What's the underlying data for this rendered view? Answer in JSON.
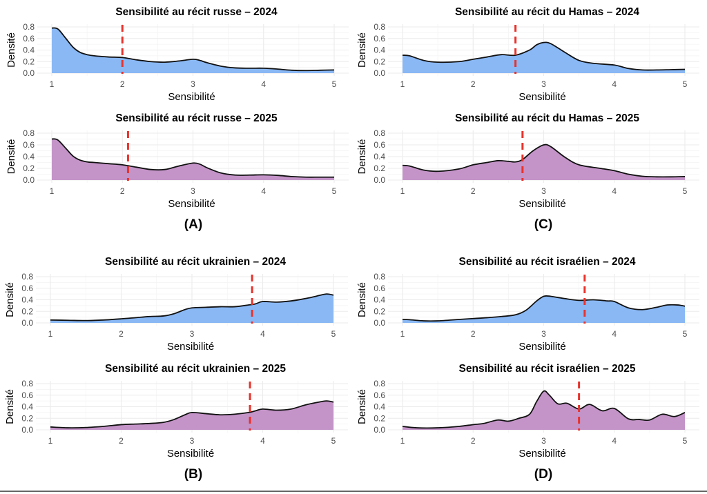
{
  "colors": {
    "fill_2024": "#8ab8f5",
    "fill_2025": "#c494c8",
    "mean_line": "#e8322b",
    "curve": "#111111"
  },
  "panel_labels": [
    "(A)",
    "(B)",
    "(C)",
    "(D)"
  ],
  "chart_data": [
    {
      "id": "russe-2024",
      "panel": "A",
      "year": 2024,
      "type": "area",
      "title": "Sensibilité au récit russe – 2024",
      "xlabel": "Sensibilité",
      "ylabel": "Densité",
      "xlim": [
        1,
        5
      ],
      "ylim": [
        0,
        0.8
      ],
      "xticks": [
        "1",
        "2",
        "3",
        "4",
        "5"
      ],
      "yticks": [
        "0.0",
        "0.2",
        "0.4",
        "0.6",
        "0.8"
      ],
      "grid": true,
      "mean": 2.0,
      "x": [
        1.0,
        1.05,
        1.1,
        1.2,
        1.3,
        1.4,
        1.5,
        1.6,
        1.8,
        2.0,
        2.2,
        2.4,
        2.6,
        2.8,
        3.0,
        3.1,
        3.2,
        3.4,
        3.6,
        3.8,
        4.0,
        4.2,
        4.4,
        4.6,
        4.8,
        5.0
      ],
      "values": [
        0.78,
        0.78,
        0.75,
        0.6,
        0.45,
        0.36,
        0.32,
        0.3,
        0.28,
        0.27,
        0.23,
        0.2,
        0.19,
        0.21,
        0.24,
        0.22,
        0.18,
        0.12,
        0.09,
        0.085,
        0.085,
        0.07,
        0.05,
        0.045,
        0.05,
        0.055
      ]
    },
    {
      "id": "russe-2025",
      "panel": "A",
      "year": 2025,
      "type": "area",
      "title": "Sensibilité au récit russe – 2025",
      "xlabel": "Sensibilité",
      "ylabel": "Densité",
      "xlim": [
        1,
        5
      ],
      "ylim": [
        0,
        0.8
      ],
      "xticks": [
        "1",
        "2",
        "3",
        "4",
        "5"
      ],
      "yticks": [
        "0.0",
        "0.2",
        "0.4",
        "0.6",
        "0.8"
      ],
      "grid": true,
      "mean": 2.08,
      "x": [
        1.0,
        1.05,
        1.1,
        1.2,
        1.3,
        1.4,
        1.5,
        1.6,
        1.8,
        2.0,
        2.2,
        2.4,
        2.6,
        2.8,
        3.0,
        3.1,
        3.2,
        3.4,
        3.6,
        3.8,
        4.0,
        4.2,
        4.4,
        4.6,
        4.8,
        5.0
      ],
      "values": [
        0.7,
        0.7,
        0.67,
        0.54,
        0.41,
        0.34,
        0.31,
        0.3,
        0.28,
        0.26,
        0.22,
        0.18,
        0.18,
        0.24,
        0.29,
        0.27,
        0.21,
        0.12,
        0.085,
        0.085,
        0.09,
        0.08,
        0.06,
        0.05,
        0.05,
        0.05
      ]
    },
    {
      "id": "ukrainien-2024",
      "panel": "B",
      "year": 2024,
      "type": "area",
      "title": "Sensibilité au récit ukrainien – 2024",
      "xlabel": "Sensibilité",
      "ylabel": "Densité",
      "xlim": [
        1,
        5
      ],
      "ylim": [
        0,
        0.8
      ],
      "xticks": [
        "1",
        "2",
        "3",
        "4",
        "5"
      ],
      "yticks": [
        "0.0",
        "0.2",
        "0.4",
        "0.6",
        "0.8"
      ],
      "grid": true,
      "mean": 3.85,
      "x": [
        1.0,
        1.25,
        1.5,
        1.75,
        2.0,
        2.2,
        2.4,
        2.6,
        2.75,
        2.9,
        3.0,
        3.2,
        3.4,
        3.6,
        3.8,
        3.9,
        4.0,
        4.2,
        4.4,
        4.6,
        4.75,
        4.9,
        5.0
      ],
      "values": [
        0.05,
        0.045,
        0.04,
        0.05,
        0.07,
        0.09,
        0.11,
        0.12,
        0.16,
        0.23,
        0.26,
        0.27,
        0.28,
        0.28,
        0.31,
        0.33,
        0.37,
        0.36,
        0.38,
        0.42,
        0.46,
        0.5,
        0.48
      ]
    },
    {
      "id": "ukrainien-2025",
      "panel": "B",
      "year": 2025,
      "type": "area",
      "title": "Sensibilité au récit ukrainien – 2025",
      "xlabel": "Sensibilité",
      "ylabel": "Densité",
      "xlim": [
        1,
        5
      ],
      "ylim": [
        0,
        0.8
      ],
      "xticks": [
        "1",
        "2",
        "3",
        "4",
        "5"
      ],
      "yticks": [
        "0.0",
        "0.2",
        "0.4",
        "0.6",
        "0.8"
      ],
      "grid": true,
      "mean": 3.82,
      "x": [
        1.0,
        1.25,
        1.5,
        1.75,
        2.0,
        2.2,
        2.4,
        2.6,
        2.75,
        2.9,
        3.0,
        3.2,
        3.4,
        3.6,
        3.8,
        3.9,
        4.0,
        4.2,
        4.4,
        4.6,
        4.75,
        4.9,
        5.0
      ],
      "values": [
        0.05,
        0.035,
        0.04,
        0.06,
        0.09,
        0.1,
        0.11,
        0.13,
        0.18,
        0.26,
        0.3,
        0.28,
        0.26,
        0.27,
        0.3,
        0.33,
        0.36,
        0.34,
        0.36,
        0.43,
        0.47,
        0.5,
        0.48
      ]
    },
    {
      "id": "hamas-2024",
      "panel": "C",
      "year": 2024,
      "type": "area",
      "title": "Sensibilité au récit du Hamas – 2024",
      "xlabel": "Sensibilité",
      "ylabel": "Densité",
      "xlim": [
        1,
        5
      ],
      "ylim": [
        0,
        0.8
      ],
      "xticks": [
        "1",
        "2",
        "3",
        "4",
        "5"
      ],
      "yticks": [
        "0.0",
        "0.2",
        "0.4",
        "0.6",
        "0.8"
      ],
      "grid": true,
      "mean": 2.6,
      "x": [
        1.0,
        1.1,
        1.3,
        1.5,
        1.8,
        2.0,
        2.2,
        2.4,
        2.6,
        2.8,
        2.9,
        3.0,
        3.1,
        3.3,
        3.5,
        3.7,
        4.0,
        4.2,
        4.4,
        4.6,
        4.8,
        5.0
      ],
      "values": [
        0.31,
        0.3,
        0.22,
        0.19,
        0.2,
        0.24,
        0.28,
        0.32,
        0.31,
        0.4,
        0.49,
        0.53,
        0.51,
        0.36,
        0.22,
        0.17,
        0.14,
        0.08,
        0.055,
        0.055,
        0.06,
        0.065
      ]
    },
    {
      "id": "hamas-2025",
      "panel": "C",
      "year": 2025,
      "type": "area",
      "title": "Sensibilité au récit du Hamas – 2025",
      "xlabel": "Sensibilité",
      "ylabel": "Densité",
      "xlim": [
        1,
        5
      ],
      "ylim": [
        0,
        0.8
      ],
      "xticks": [
        "1",
        "2",
        "3",
        "4",
        "5"
      ],
      "yticks": [
        "0.0",
        "0.2",
        "0.4",
        "0.6",
        "0.8"
      ],
      "grid": true,
      "mean": 2.7,
      "x": [
        1.0,
        1.1,
        1.3,
        1.5,
        1.8,
        2.0,
        2.2,
        2.35,
        2.5,
        2.6,
        2.7,
        2.85,
        3.0,
        3.1,
        3.3,
        3.5,
        3.8,
        4.0,
        4.2,
        4.4,
        4.6,
        4.8,
        5.0
      ],
      "values": [
        0.25,
        0.24,
        0.17,
        0.15,
        0.19,
        0.26,
        0.3,
        0.33,
        0.32,
        0.31,
        0.35,
        0.5,
        0.6,
        0.57,
        0.39,
        0.26,
        0.2,
        0.16,
        0.1,
        0.065,
        0.055,
        0.055,
        0.06
      ]
    },
    {
      "id": "israelien-2024",
      "panel": "D",
      "year": 2024,
      "type": "area",
      "title": "Sensibilité au récit israélien – 2024",
      "xlabel": "Sensibilité",
      "ylabel": "Densité",
      "xlim": [
        1,
        5
      ],
      "ylim": [
        0,
        0.8
      ],
      "xticks": [
        "1",
        "2",
        "3",
        "4",
        "5"
      ],
      "yticks": [
        "0.0",
        "0.2",
        "0.4",
        "0.6",
        "0.8"
      ],
      "grid": true,
      "mean": 3.58,
      "x": [
        1.0,
        1.1,
        1.3,
        1.5,
        1.8,
        2.0,
        2.2,
        2.4,
        2.6,
        2.75,
        2.9,
        3.0,
        3.1,
        3.3,
        3.5,
        3.7,
        3.9,
        4.0,
        4.2,
        4.4,
        4.6,
        4.75,
        4.9,
        5.0
      ],
      "values": [
        0.06,
        0.055,
        0.035,
        0.035,
        0.06,
        0.075,
        0.09,
        0.11,
        0.14,
        0.22,
        0.38,
        0.46,
        0.46,
        0.42,
        0.39,
        0.4,
        0.38,
        0.37,
        0.26,
        0.23,
        0.27,
        0.31,
        0.31,
        0.29
      ]
    },
    {
      "id": "israelien-2025",
      "panel": "D",
      "year": 2025,
      "type": "area",
      "title": "Sensibilité au récit israélien – 2025",
      "xlabel": "Sensibilité",
      "ylabel": "Densité",
      "xlim": [
        1,
        5
      ],
      "ylim": [
        0,
        0.8
      ],
      "xticks": [
        "1",
        "2",
        "3",
        "4",
        "5"
      ],
      "yticks": [
        "0.0",
        "0.2",
        "0.4",
        "0.6",
        "0.8"
      ],
      "grid": true,
      "mean": 3.5,
      "x": [
        1.0,
        1.2,
        1.5,
        1.8,
        2.0,
        2.15,
        2.35,
        2.5,
        2.65,
        2.8,
        2.9,
        3.0,
        3.08,
        3.2,
        3.33,
        3.5,
        3.65,
        3.83,
        4.0,
        4.2,
        4.35,
        4.5,
        4.68,
        4.85,
        5.0
      ],
      "values": [
        0.06,
        0.035,
        0.035,
        0.06,
        0.09,
        0.11,
        0.17,
        0.15,
        0.2,
        0.27,
        0.49,
        0.67,
        0.6,
        0.45,
        0.46,
        0.36,
        0.44,
        0.33,
        0.37,
        0.19,
        0.18,
        0.17,
        0.27,
        0.23,
        0.3
      ]
    }
  ]
}
